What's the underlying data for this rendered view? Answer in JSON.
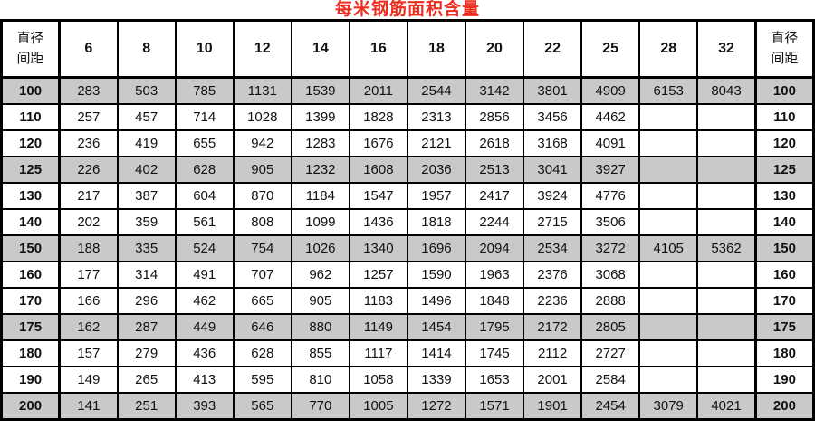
{
  "title": "每米钢筋面积含量",
  "colors": {
    "title_red": "#ed2d1f",
    "row_shade": "#c9c9c9",
    "border": "#000000"
  },
  "table": {
    "corner_label_line1": "直径",
    "corner_label_line2": "间距",
    "diameters": [
      "6",
      "8",
      "10",
      "12",
      "14",
      "16",
      "18",
      "20",
      "22",
      "25",
      "28",
      "32"
    ],
    "rows": [
      {
        "spacing": "100",
        "shaded": true,
        "values": [
          "283",
          "503",
          "785",
          "1131",
          "1539",
          "2011",
          "2544",
          "3142",
          "3801",
          "4909",
          "6153",
          "8043"
        ]
      },
      {
        "spacing": "110",
        "shaded": false,
        "values": [
          "257",
          "457",
          "714",
          "1028",
          "1399",
          "1828",
          "2313",
          "2856",
          "3456",
          "4462",
          "",
          ""
        ]
      },
      {
        "spacing": "120",
        "shaded": false,
        "values": [
          "236",
          "419",
          "655",
          "942",
          "1283",
          "1676",
          "2121",
          "2618",
          "3168",
          "4091",
          "",
          ""
        ]
      },
      {
        "spacing": "125",
        "shaded": true,
        "values": [
          "226",
          "402",
          "628",
          "905",
          "1232",
          "1608",
          "2036",
          "2513",
          "3041",
          "3927",
          "",
          ""
        ]
      },
      {
        "spacing": "130",
        "shaded": false,
        "values": [
          "217",
          "387",
          "604",
          "870",
          "1184",
          "1547",
          "1957",
          "2417",
          "3924",
          "4776",
          "",
          ""
        ]
      },
      {
        "spacing": "140",
        "shaded": false,
        "values": [
          "202",
          "359",
          "561",
          "808",
          "1099",
          "1436",
          "1818",
          "2244",
          "2715",
          "3506",
          "",
          ""
        ]
      },
      {
        "spacing": "150",
        "shaded": true,
        "values": [
          "188",
          "335",
          "524",
          "754",
          "1026",
          "1340",
          "1696",
          "2094",
          "2534",
          "3272",
          "4105",
          "5362"
        ]
      },
      {
        "spacing": "160",
        "shaded": false,
        "values": [
          "177",
          "314",
          "491",
          "707",
          "962",
          "1257",
          "1590",
          "1963",
          "2376",
          "3068",
          "",
          ""
        ]
      },
      {
        "spacing": "170",
        "shaded": false,
        "values": [
          "166",
          "296",
          "462",
          "665",
          "905",
          "1183",
          "1496",
          "1848",
          "2236",
          "2888",
          "",
          ""
        ]
      },
      {
        "spacing": "175",
        "shaded": true,
        "values": [
          "162",
          "287",
          "449",
          "646",
          "880",
          "1149",
          "1454",
          "1795",
          "2172",
          "2805",
          "",
          ""
        ]
      },
      {
        "spacing": "180",
        "shaded": false,
        "values": [
          "157",
          "279",
          "436",
          "628",
          "855",
          "1117",
          "1414",
          "1745",
          "2112",
          "2727",
          "",
          ""
        ]
      },
      {
        "spacing": "190",
        "shaded": false,
        "values": [
          "149",
          "265",
          "413",
          "595",
          "810",
          "1058",
          "1339",
          "1653",
          "2001",
          "2584",
          "",
          ""
        ]
      },
      {
        "spacing": "200",
        "shaded": true,
        "values": [
          "141",
          "251",
          "393",
          "565",
          "770",
          "1005",
          "1272",
          "1571",
          "1901",
          "2454",
          "3079",
          "4021"
        ]
      }
    ]
  }
}
